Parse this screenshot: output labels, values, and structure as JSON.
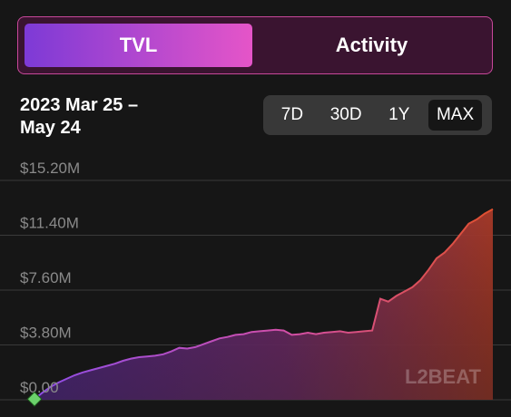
{
  "tabs": [
    {
      "label": "TVL",
      "active": true
    },
    {
      "label": "Activity",
      "active": false
    }
  ],
  "date_range": {
    "line1": "2023 Mar 25 –",
    "line2": "May 24"
  },
  "range_options": [
    {
      "label": "7D",
      "active": false
    },
    {
      "label": "30D",
      "active": false
    },
    {
      "label": "1Y",
      "active": false
    },
    {
      "label": "MAX",
      "active": true
    }
  ],
  "watermark": "L2BEAT",
  "colors": {
    "tab_border": "#c8489a",
    "line_start": "#8d4de8",
    "line_mid": "#d24fa8",
    "line_end": "#e0502e",
    "marker": "#6bd16b"
  },
  "chart_data": {
    "type": "area",
    "title": "",
    "xlabel": "",
    "ylabel": "",
    "ylim": [
      0,
      15.2
    ],
    "y_ticks": [
      "$15.20M",
      "$11.40M",
      "$7.60M",
      "$3.80M",
      "$0.00"
    ],
    "y_tick_values": [
      15.2,
      11.4,
      7.6,
      3.8,
      0
    ],
    "y_unit": "USD millions",
    "grid": true,
    "series": [
      {
        "values": [
          0.05,
          0.5,
          0.9,
          1.2,
          1.45,
          1.7,
          1.9,
          2.05,
          2.2,
          2.35,
          2.5,
          2.7,
          2.85,
          2.95,
          3.0,
          3.05,
          3.15,
          3.35,
          3.6,
          3.55,
          3.65,
          3.85,
          4.05,
          4.25,
          4.35,
          4.5,
          4.55,
          4.7,
          4.75,
          4.8,
          4.85,
          4.8,
          4.5,
          4.55,
          4.65,
          4.55,
          4.65,
          4.7,
          4.75,
          4.65,
          4.7,
          4.75,
          4.8,
          7.0,
          6.8,
          7.2,
          7.5,
          7.8,
          8.3,
          9.0,
          9.8,
          10.2,
          10.8,
          11.5,
          12.2,
          12.5,
          12.9,
          13.2
        ]
      }
    ],
    "start_marker": true
  }
}
